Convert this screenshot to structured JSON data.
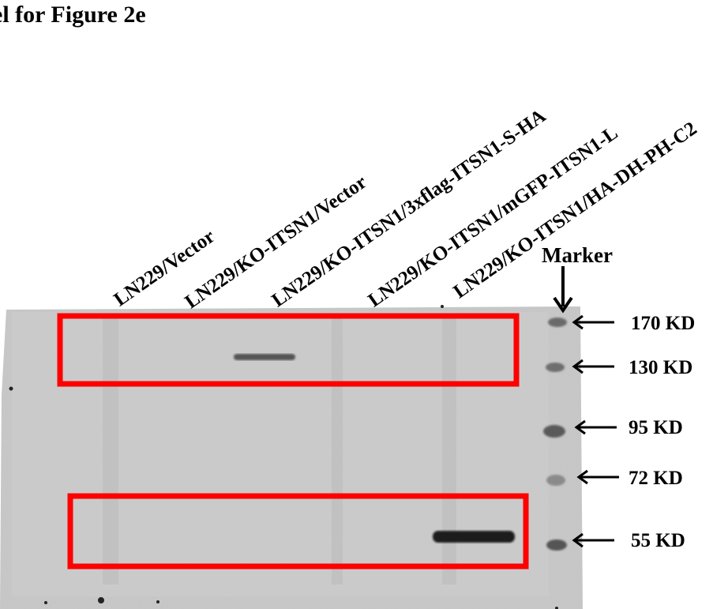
{
  "title": "el for Figure 2e",
  "lanes": [
    "LN229/Vector",
    "LN229/KO-ITSN1/Vector",
    "LN229/KO-ITSN1/3xflag-ITSN1-S-HA",
    "LN229/KO-ITSN1/mGFP-ITSN1-L",
    "LN229/KO-ITSN1/HA-DH-PH-C2"
  ],
  "marker_label": "Marker",
  "marker_sizes": [
    "170 KD",
    "130 KD",
    "95 KD",
    "72 KD",
    "55 KD"
  ],
  "highlight_color": "#ff0000"
}
